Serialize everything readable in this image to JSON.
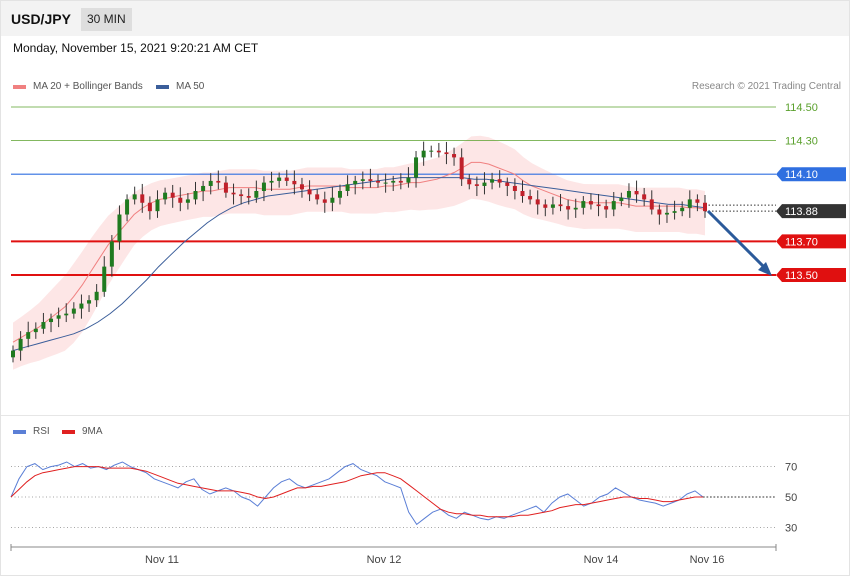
{
  "header": {
    "symbol": "USD/JPY",
    "timeframe": "30 MIN",
    "datetime": "Monday, November 15, 2021 9:20:21 AM CET",
    "credit": "Research © 2021 Trading Central"
  },
  "legend": [
    {
      "label": "MA 20 + Bollinger Bands",
      "color": "#f08080"
    },
    {
      "label": "MA 50",
      "color": "#3b5e9a"
    }
  ],
  "rsi_legend": [
    {
      "label": "RSI",
      "color": "#5b7fd6"
    },
    {
      "label": "9MA",
      "color": "#e02020"
    }
  ],
  "chart_data": [
    {
      "type": "candlestick",
      "ylim": [
        113.0,
        114.55
      ],
      "x_tick_labels": [
        "Nov 11",
        "Nov 12",
        "Nov 14",
        "Nov 16"
      ],
      "current_price": {
        "value": 113.88,
        "label": "113.88",
        "color": "#333333"
      },
      "levels": [
        {
          "value": 114.5,
          "label": "114.50",
          "kind": "target",
          "color": "#5aa02c"
        },
        {
          "value": 114.3,
          "label": "114.30",
          "kind": "target",
          "color": "#5aa02c"
        },
        {
          "value": 114.1,
          "label": "114.10",
          "kind": "pivot",
          "color": "#2f6fe0"
        },
        {
          "value": 113.7,
          "label": "113.70",
          "kind": "support",
          "color": "#e01010"
        },
        {
          "value": 113.5,
          "label": "113.50",
          "kind": "support",
          "color": "#e01010"
        }
      ],
      "close_series": [
        113.05,
        113.12,
        113.16,
        113.18,
        113.22,
        113.24,
        113.26,
        113.27,
        113.3,
        113.33,
        113.35,
        113.4,
        113.55,
        113.7,
        113.86,
        113.95,
        113.98,
        113.93,
        113.88,
        113.95,
        113.99,
        113.96,
        113.93,
        113.95,
        114.0,
        114.03,
        114.06,
        114.05,
        113.99,
        113.98,
        113.97,
        113.96,
        114.0,
        114.05,
        114.06,
        114.08,
        114.06,
        114.04,
        114.01,
        113.98,
        113.95,
        113.93,
        113.96,
        114.0,
        114.04,
        114.06,
        114.07,
        114.06,
        114.05,
        114.05,
        114.06,
        114.05,
        114.08,
        114.2,
        114.24,
        114.24,
        114.23,
        114.22,
        114.2,
        114.07,
        114.04,
        114.03,
        114.05,
        114.07,
        114.05,
        114.03,
        114.0,
        113.97,
        113.95,
        113.92,
        113.9,
        113.92,
        113.91,
        113.89,
        113.9,
        113.94,
        113.92,
        113.91,
        113.89,
        113.94,
        113.96,
        114.0,
        113.98,
        113.95,
        113.89,
        113.86,
        113.87,
        113.88,
        113.9,
        113.95,
        113.93,
        113.88
      ],
      "ma20_series": [
        113.1,
        113.13,
        113.16,
        113.19,
        113.23,
        113.27,
        113.31,
        113.37,
        113.44,
        113.52,
        113.6,
        113.68,
        113.74,
        113.8,
        113.86,
        113.9,
        113.93,
        113.95,
        113.96,
        113.97,
        113.98,
        113.99,
        114.0,
        114.0,
        114.01,
        114.02,
        114.02,
        114.02,
        114.02,
        114.01,
        114.01,
        114.01,
        114.01,
        114.02,
        114.03,
        114.03,
        114.03,
        114.03,
        114.03,
        114.02,
        114.02,
        114.02,
        114.02,
        114.03,
        114.03,
        114.04,
        114.05,
        114.05,
        114.06,
        114.07,
        114.09,
        114.11,
        114.14,
        114.17,
        114.17,
        114.16,
        114.14,
        114.12,
        114.1,
        114.06,
        114.03,
        114.01,
        113.99,
        113.97,
        113.95,
        113.94,
        113.93,
        113.93,
        113.93,
        113.93,
        113.93,
        113.92,
        113.91,
        113.91,
        113.91,
        113.91,
        113.91,
        113.91,
        113.9,
        113.9,
        113.89
      ],
      "ma50_series": [
        113.05,
        113.07,
        113.09,
        113.11,
        113.13,
        113.15,
        113.18,
        113.22,
        113.27,
        113.33,
        113.4,
        113.47,
        113.55,
        113.62,
        113.69,
        113.75,
        113.81,
        113.86,
        113.9,
        113.93,
        113.95,
        113.97,
        113.98,
        113.99,
        114.0,
        114.01,
        114.02,
        114.03,
        114.04,
        114.05,
        114.06,
        114.07,
        114.08,
        114.08,
        114.08,
        114.08,
        114.08,
        114.08,
        114.07,
        114.07,
        114.06,
        114.05,
        114.04,
        114.03,
        114.02,
        114.01,
        114.0,
        113.99,
        113.98,
        113.97,
        113.96,
        113.95,
        113.94,
        113.93,
        113.92,
        113.92,
        113.91,
        113.9
      ]
    },
    {
      "type": "line",
      "title": "RSI",
      "ylim": [
        20,
        80
      ],
      "y_tick_labels": [
        "70",
        "50",
        "30"
      ],
      "series": [
        {
          "name": "RSI",
          "color": "#5b7fd6",
          "values": [
            50,
            62,
            70,
            72,
            68,
            70,
            71,
            73,
            70,
            72,
            69,
            70,
            68,
            71,
            73,
            70,
            68,
            66,
            62,
            60,
            58,
            56,
            60,
            62,
            55,
            52,
            54,
            56,
            54,
            50,
            48,
            44,
            50,
            56,
            60,
            62,
            58,
            56,
            58,
            60,
            62,
            66,
            70,
            72,
            68,
            66,
            64,
            60,
            58,
            56,
            40,
            32,
            36,
            40,
            42,
            38,
            36,
            40,
            38,
            36,
            35,
            37,
            36,
            38,
            40,
            42,
            44,
            40,
            46,
            50,
            52,
            48,
            44,
            46,
            50,
            52,
            56,
            53,
            50,
            48,
            47,
            46,
            44,
            46,
            48,
            52,
            54,
            50
          ]
        },
        {
          "name": "9MA",
          "color": "#e02020",
          "values": [
            50,
            55,
            60,
            64,
            66,
            67,
            68,
            69,
            70,
            70,
            70,
            70,
            69,
            69,
            69,
            69,
            68,
            67,
            65,
            63,
            61,
            59,
            58,
            57,
            56,
            55,
            54,
            54,
            54,
            53,
            52,
            50,
            49,
            50,
            52,
            54,
            56,
            56,
            57,
            57,
            58,
            59,
            60,
            62,
            64,
            65,
            66,
            66,
            64,
            62,
            58,
            54,
            50,
            46,
            42,
            40,
            39,
            39,
            38,
            38,
            37,
            37,
            37,
            37,
            38,
            38,
            39,
            40,
            41,
            43,
            44,
            45,
            45,
            46,
            47,
            48,
            49,
            50,
            50,
            49,
            49,
            48,
            47,
            47,
            48,
            49,
            50,
            50
          ]
        }
      ]
    }
  ]
}
